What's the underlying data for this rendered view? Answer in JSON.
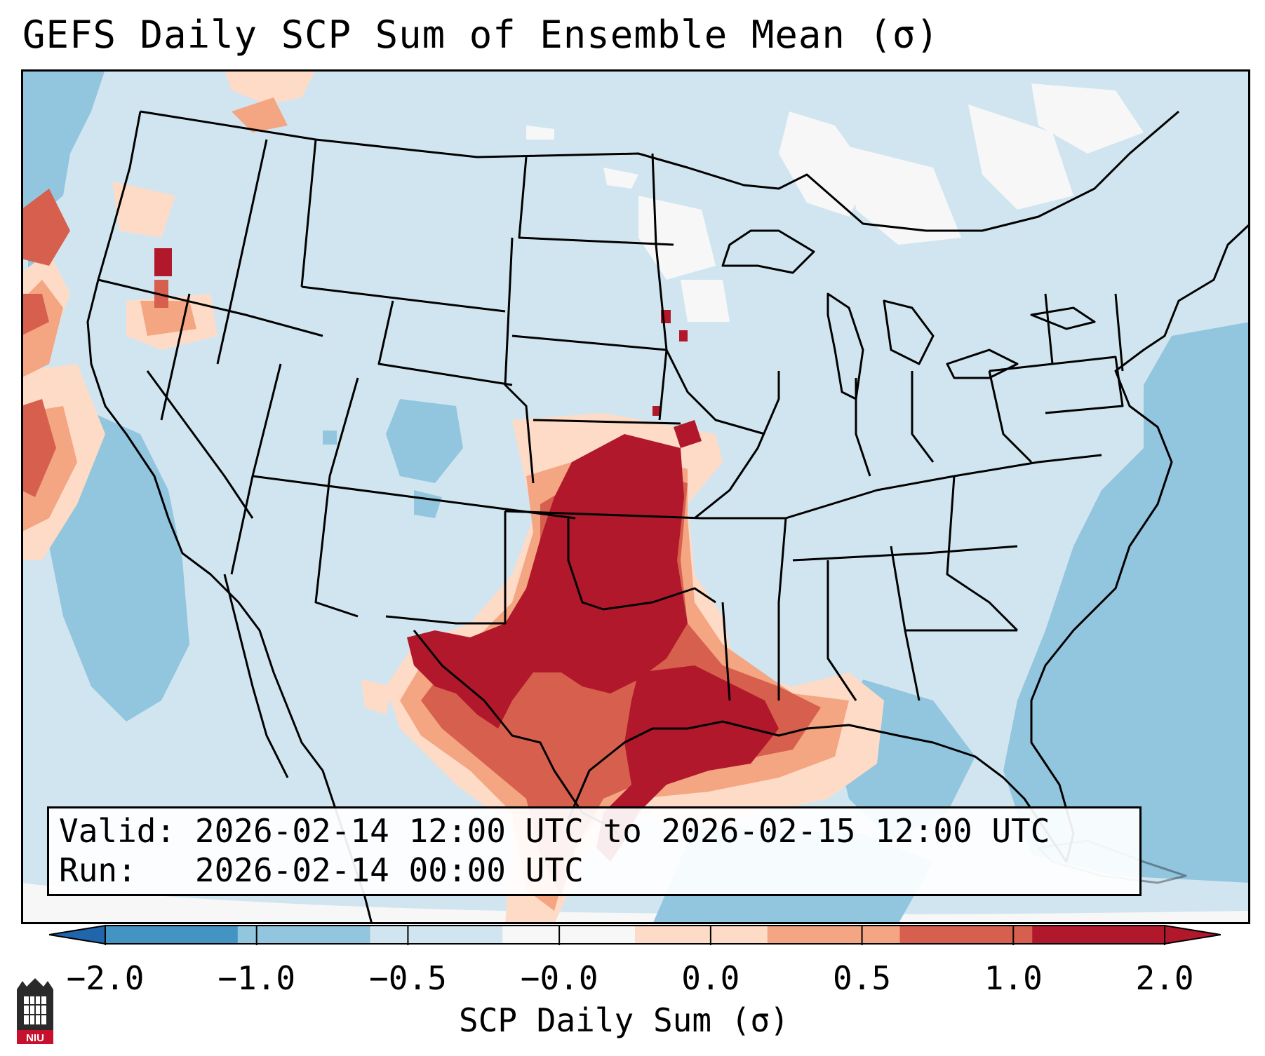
{
  "title": "GEFS Daily SCP Sum of Ensemble Mean (σ)",
  "info": {
    "valid_label": "Valid:",
    "valid_value": "2026-02-14 12:00 UTC to 2026-02-15 12:00 UTC",
    "run_label": "Run:",
    "run_value": "2026-02-14 00:00 UTC"
  },
  "colorbar": {
    "label": "SCP Daily Sum (σ)",
    "ticks": [
      "−2.0",
      "−1.0",
      "−0.5",
      "−0.0",
      "0.0",
      "0.5",
      "1.0",
      "2.0"
    ],
    "colors": [
      "#4393c3",
      "#92c5de",
      "#d1e5f0",
      "#f7f7f7",
      "#fddbc7",
      "#f4a582",
      "#d6604d",
      "#b2182b"
    ],
    "extend_low_color": "#2166ac",
    "extend_high_color": "#b2182b"
  },
  "map": {
    "region": "Contiguous United States",
    "field": "SCP daily sum anomaly",
    "background_color": "#d1e5f0",
    "peak_region": "Southern Plains (Oklahoma / Texas)"
  },
  "logo": {
    "text": "NIU",
    "color": "#c8102e"
  }
}
